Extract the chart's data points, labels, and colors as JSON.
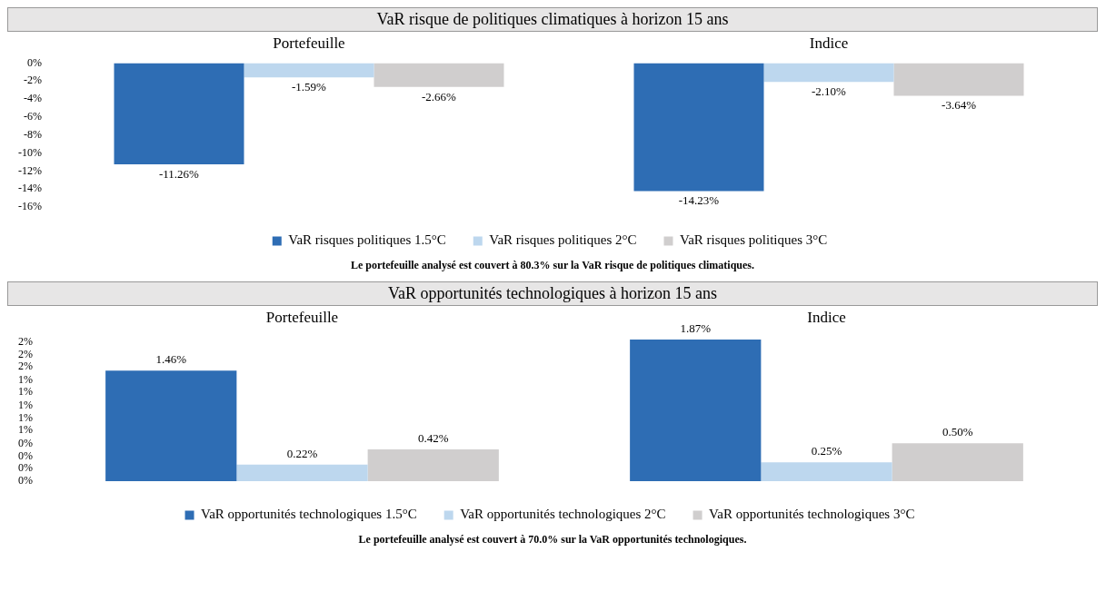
{
  "chart_data": [
    {
      "type": "bar",
      "title": "VaR risque de politiques climatiques à horizon 15 ans",
      "categories": [
        "Portefeuille",
        "Indice"
      ],
      "series": [
        {
          "name": "VaR risques politiques 1.5°C",
          "color": "#2e6db4",
          "values": [
            -11.26,
            -14.23
          ],
          "value_labels": [
            "-11.26%",
            "-14.23%"
          ]
        },
        {
          "name": "VaR risques politiques 2°C",
          "color": "#bdd7ee",
          "values": [
            -1.59,
            -2.1
          ],
          "value_labels": [
            "-1.59%",
            "-2.10%"
          ]
        },
        {
          "name": "VaR risques politiques 3°C",
          "color": "#d0cece",
          "values": [
            -2.66,
            -3.64
          ],
          "value_labels": [
            "-2.66%",
            "-3.64%"
          ]
        }
      ],
      "ylim": [
        -16,
        0
      ],
      "yticks": [
        {
          "value": 0,
          "label": "0%"
        },
        {
          "value": -2,
          "label": "-2%"
        },
        {
          "value": -4,
          "label": "-4%"
        },
        {
          "value": -6,
          "label": "-6%"
        },
        {
          "value": -8,
          "label": "-8%"
        },
        {
          "value": -10,
          "label": "-10%"
        },
        {
          "value": -12,
          "label": "-12%"
        },
        {
          "value": -14,
          "label": "-14%"
        },
        {
          "value": -16,
          "label": "-16%"
        }
      ],
      "grid": false,
      "legend": "bottom",
      "annotations": [
        "Le portefeuille analysé est couvert à 80.3% sur la VaR risque de politiques climatiques."
      ]
    },
    {
      "type": "bar",
      "title": "VaR opportunités technologiques à horizon 15 ans",
      "categories": [
        "Portefeuille",
        "Indice"
      ],
      "series": [
        {
          "name": "VaR opportunités technologiques 1.5°C",
          "color": "#2e6db4",
          "values": [
            1.46,
            1.87
          ],
          "value_labels": [
            "1.46%",
            "1.87%"
          ]
        },
        {
          "name": "VaR opportunités technologiques 2°C",
          "color": "#bdd7ee",
          "values": [
            0.22,
            0.25
          ],
          "value_labels": [
            "0.22%",
            "0.25%"
          ]
        },
        {
          "name": "VaR opportunités technologiques 3°C",
          "color": "#d0cece",
          "values": [
            0.42,
            0.5
          ],
          "value_labels": [
            "0.42%",
            "0.50%"
          ]
        }
      ],
      "ylim": [
        0,
        1.9
      ],
      "yticks": [
        {
          "value": 0,
          "label": "0%"
        },
        {
          "value": 0.17,
          "label": "0%"
        },
        {
          "value": 0.33,
          "label": "0%"
        },
        {
          "value": 0.49,
          "label": "0%"
        },
        {
          "value": 0.67,
          "label": "1%"
        },
        {
          "value": 0.83,
          "label": "1%"
        },
        {
          "value": 1.0,
          "label": "1%"
        },
        {
          "value": 1.17,
          "label": "1%"
        },
        {
          "value": 1.33,
          "label": "1%"
        },
        {
          "value": 1.51,
          "label": "2%"
        },
        {
          "value": 1.67,
          "label": "2%"
        },
        {
          "value": 1.84,
          "label": "2%"
        }
      ],
      "grid": false,
      "legend": "bottom",
      "annotations": [
        "Le portefeuille analysé est couvert à 70.0% sur la VaR opportunités technologiques."
      ]
    }
  ]
}
